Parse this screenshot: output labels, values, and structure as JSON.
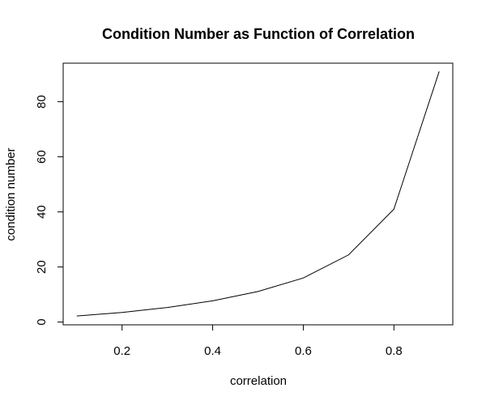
{
  "chart_data": {
    "type": "line",
    "title": "Condition Number as Function of Correlation",
    "xlabel": "correlation",
    "ylabel": "condition number",
    "x": [
      0.1,
      0.2,
      0.3,
      0.4,
      0.5,
      0.6,
      0.7,
      0.8,
      0.9
    ],
    "series": [
      {
        "values": [
          2.2,
          3.5,
          5.3,
          7.7,
          11.1,
          16.0,
          24.4,
          41.0,
          91.0
        ]
      }
    ],
    "xlim": [
      0.07,
      0.93
    ],
    "ylim": [
      -1,
      94
    ],
    "xticks": [
      0.2,
      0.4,
      0.6,
      0.8
    ],
    "xtick_labels": [
      "0.2",
      "0.4",
      "0.6",
      "0.8"
    ],
    "yticks": [
      0,
      20,
      40,
      60,
      80
    ],
    "ytick_labels": [
      "0",
      "20",
      "40",
      "60",
      "80"
    ],
    "grid": false,
    "legend": "none",
    "line_color": "#000000"
  }
}
